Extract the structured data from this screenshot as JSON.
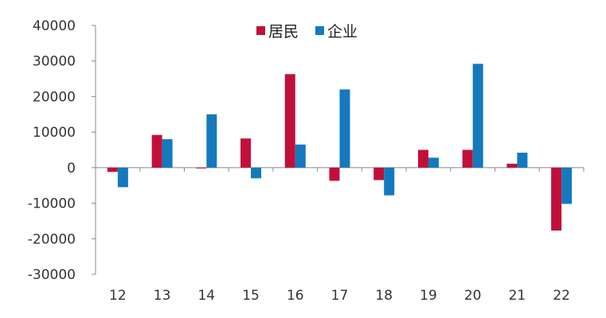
{
  "chart_data": {
    "type": "bar",
    "categories": [
      "12",
      "13",
      "14",
      "15",
      "16",
      "17",
      "18",
      "19",
      "20",
      "21",
      "22"
    ],
    "series": [
      {
        "name": "居民",
        "color": "#c0103a",
        "values": [
          -1200,
          9200,
          -200,
          8200,
          26300,
          -3700,
          -3500,
          5000,
          5000,
          1100,
          -17700
        ]
      },
      {
        "name": "企业",
        "color": "#1479bd",
        "values": [
          -5500,
          8000,
          15000,
          -3000,
          6500,
          22000,
          -7800,
          2800,
          29200,
          4200,
          -10200
        ]
      }
    ],
    "ylim": [
      -30000,
      40000
    ],
    "yticks": [
      40000,
      30000,
      20000,
      10000,
      0,
      -10000,
      -20000,
      -30000
    ],
    "legend_position": "top-center",
    "grid": false,
    "xlabel": "",
    "ylabel": "",
    "title": ""
  }
}
